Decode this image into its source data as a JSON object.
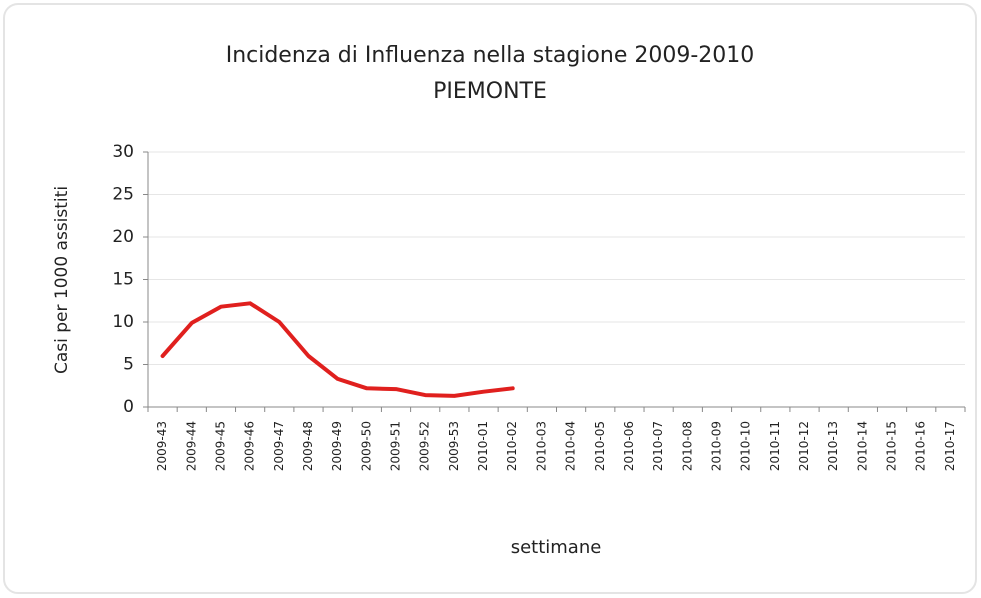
{
  "chart_data": {
    "type": "line",
    "title": "Incidenza di Influenza nella stagione 2009-2010",
    "subtitle": "PIEMONTE",
    "x_label": "settimane",
    "y_label": "Casi per 1000 assistiti",
    "categories": [
      "2009-43",
      "2009-44",
      "2009-45",
      "2009-46",
      "2009-47",
      "2009-48",
      "2009-49",
      "2009-50",
      "2009-51",
      "2009-52",
      "2009-53",
      "2010-01",
      "2010-02",
      "2010-03",
      "2010-04",
      "2010-05",
      "2010-06",
      "2010-07",
      "2010-08",
      "2010-09",
      "2010-10",
      "2010-11",
      "2010-12",
      "2010-13",
      "2010-14",
      "2010-15",
      "2010-16",
      "2010-17"
    ],
    "series": [
      {
        "name": "Piemonte",
        "color": "#e0201e",
        "values": [
          6.0,
          9.9,
          11.8,
          12.2,
          10.0,
          6.0,
          3.3,
          2.2,
          2.1,
          1.4,
          1.3,
          1.8,
          2.2,
          null,
          null,
          null,
          null,
          null,
          null,
          null,
          null,
          null,
          null,
          null,
          null,
          null,
          null,
          null
        ]
      }
    ],
    "ylim": [
      0,
      30
    ],
    "yticks": [
      0,
      5,
      10,
      15,
      20,
      25,
      30
    ],
    "grid": true
  }
}
